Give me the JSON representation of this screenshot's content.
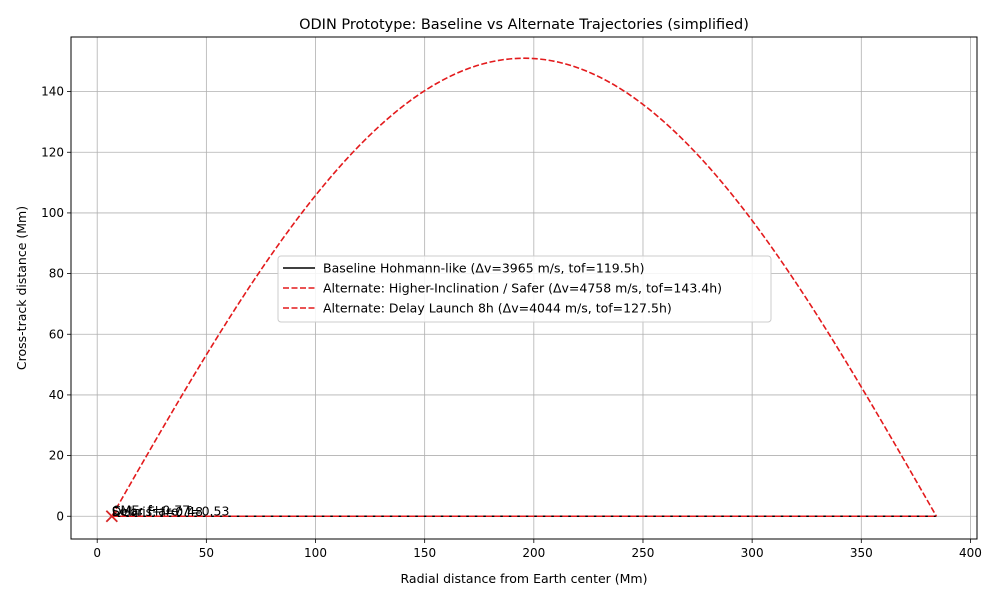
{
  "chart_data": {
    "type": "line",
    "title": "ODIN Prototype: Baseline vs Alternate Trajectories (simplified)",
    "xlabel": "Radial distance from Earth center (Mm)",
    "ylabel": "Cross-track distance (Mm)",
    "xlim": [
      -12,
      403
    ],
    "ylim": [
      -7.5,
      158
    ],
    "x_ticks": [
      0,
      50,
      100,
      150,
      200,
      250,
      300,
      350,
      400
    ],
    "y_ticks": [
      0,
      20,
      40,
      60,
      80,
      100,
      120,
      140
    ],
    "grid": true,
    "legend_placement": "center",
    "series": [
      {
        "name": "Baseline Hohmann-like (Δv=3965 m/s, tof=119.5h)",
        "style": "solid",
        "color": "#000000",
        "x": [
          6.7,
          384.4
        ],
        "y": [
          0,
          0
        ]
      },
      {
        "name": "Alternate: Higher-Inclination / Safer (Δv=4758 m/s, tof=143.4h)",
        "style": "dashed",
        "color": "#e31a1c",
        "shape": "half-sine",
        "x_start": 6.7,
        "x_end": 384.4,
        "peak": 151
      },
      {
        "name": "Alternate: Delay Launch 8h (Δv=4044 m/s, tof=127.5h)",
        "style": "dashed",
        "color": "#e31a1c",
        "x": [
          6.7,
          384.4
        ],
        "y": [
          0,
          0
        ]
      }
    ],
    "markers": [
      {
        "label": "CME",
        "x": 6.7,
        "y": 0,
        "symbol": "x",
        "color": "#d62728"
      }
    ],
    "annotations": [
      "CME: f=0.77",
      "Solar Flare: f=0.53",
      "Debris: f=0.48"
    ]
  }
}
